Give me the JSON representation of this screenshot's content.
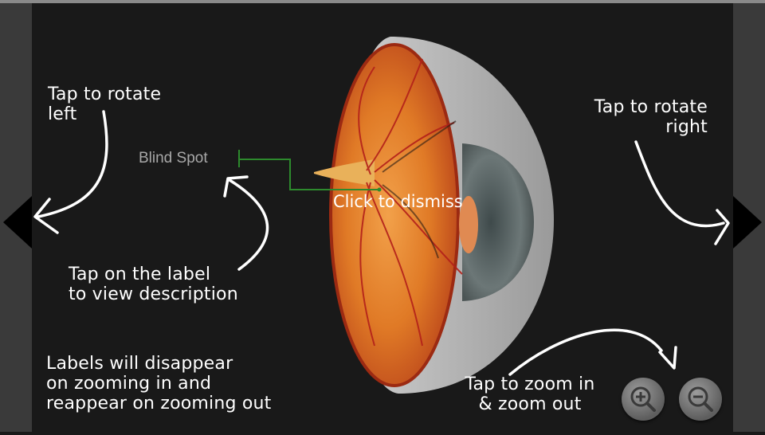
{
  "navigation": {
    "rotate_left_icon": "triangle-left-icon",
    "rotate_right_icon": "triangle-right-icon"
  },
  "hints": {
    "rotate_left": "Tap to rotate\nleft",
    "rotate_right": "Tap to rotate\nright",
    "label_tap": "Tap on the label\nto view description",
    "zoom_note": "Labels will disappear\non zooming in and\nreappear on zooming out",
    "zoom": "Tap to zoom in\n& zoom out"
  },
  "model": {
    "label": "Blind Spot",
    "dismiss_text": "Click to dismiss"
  },
  "zoom_controls": {
    "zoom_in_icon": "zoom-in-icon",
    "zoom_out_icon": "zoom-out-icon"
  },
  "colors": {
    "background": "#191919",
    "side_rail": "#3a3a3a",
    "leader_line": "#2d8a2d",
    "hint_text": "#ffffff"
  }
}
